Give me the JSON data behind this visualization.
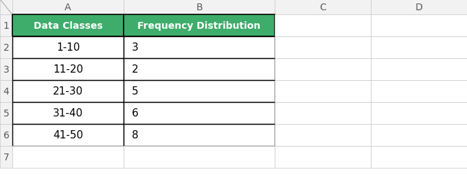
{
  "col_headers": [
    "A",
    "B",
    "C",
    "D"
  ],
  "row_numbers": [
    "1",
    "2",
    "3",
    "4",
    "5",
    "6",
    "7"
  ],
  "table_headers": [
    "Data Classes",
    "Frequency Distribution"
  ],
  "data_classes": [
    "1-10",
    "11-20",
    "21-30",
    "31-40",
    "41-50"
  ],
  "frequencies": [
    "3",
    "2",
    "5",
    "6",
    "8"
  ],
  "header_bg": "#3EAD6B",
  "header_text": "#ffffff",
  "cell_bg": "#ffffff",
  "cell_text": "#000000",
  "border_color": "#000000",
  "light_grid_color": "#c8c8c8",
  "row_num_bg": "#f2f2f2",
  "row_num_color": "#595959",
  "col_hdr_bg": "#f2f2f2",
  "col_hdr_color": "#595959",
  "outer_bg": "#ffffff",
  "col_hdr_fontsize": 10,
  "row_num_fontsize": 10,
  "header_fontsize": 10,
  "data_fontsize": 11
}
